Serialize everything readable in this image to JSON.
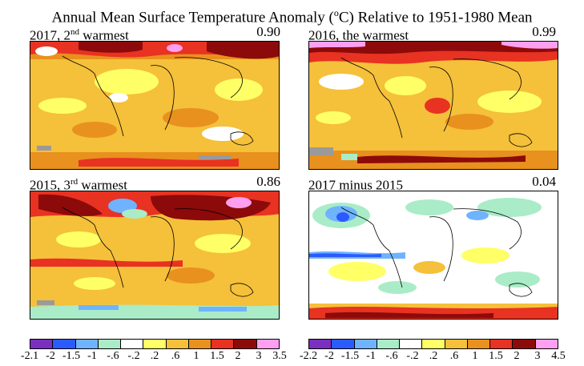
{
  "title": {
    "pre": "Annual Mean Surface Temperature Anomaly (",
    "sup": "o",
    "post": "C) Relative to 1951-1980 Mean"
  },
  "panels": [
    {
      "id": "p2017",
      "label_pre": "2017, 2",
      "label_sup": "nd",
      "label_post": " warmest",
      "value": "0.90"
    },
    {
      "id": "p2016",
      "label_pre": "2016, the warmest",
      "label_sup": "",
      "label_post": "",
      "value": "0.99"
    },
    {
      "id": "p2015",
      "label_pre": "2015, 3",
      "label_sup": "rd",
      "label_post": " warmest",
      "value": "0.86"
    },
    {
      "id": "pdiff",
      "label_pre": "2017 minus 2015",
      "label_sup": "",
      "label_post": "",
      "value": "0.04"
    }
  ],
  "colorbars": [
    {
      "colors": [
        "#7b2fbe",
        "#2b5bff",
        "#6fb3ff",
        "#a9ecc7",
        "#ffffff",
        "#ffff66",
        "#f5c03a",
        "#e8911e",
        "#e83222",
        "#8c0a0a",
        "#ff9ff0"
      ],
      "ticks": [
        "-2.1",
        "-2",
        "-1.5",
        "-1",
        "-.6",
        "-.2",
        ".2",
        ".6",
        "1",
        "1.5",
        "2",
        "3",
        "3.5"
      ]
    },
    {
      "colors": [
        "#7b2fbe",
        "#2b5bff",
        "#6fb3ff",
        "#a9ecc7",
        "#ffffff",
        "#ffff66",
        "#f5c03a",
        "#e8911e",
        "#e83222",
        "#8c0a0a",
        "#ff9ff0"
      ],
      "ticks": [
        "-2.2",
        "-2",
        "-1.5",
        "-1",
        "-.6",
        "-.2",
        ".2",
        ".6",
        "1",
        "1.5",
        "2",
        "3",
        "4.5"
      ]
    }
  ]
}
